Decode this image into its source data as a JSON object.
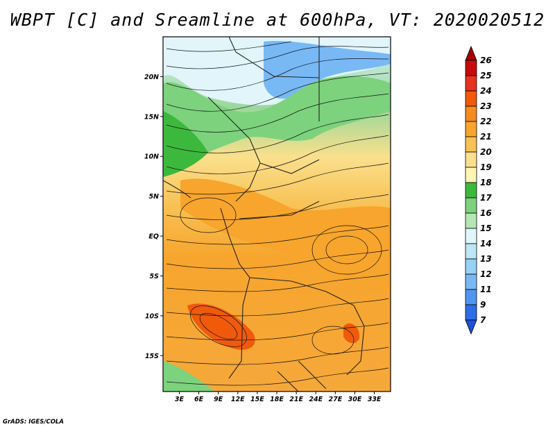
{
  "title": "WBPT [C] and Sreamline at 600hPa, VT: 2020020512",
  "credit": "GrADS: IGES/COLA",
  "map": {
    "lat_labels": [
      "20N",
      "15N",
      "10N",
      "5N",
      "EQ",
      "5S",
      "10S",
      "15S"
    ],
    "lat_values": [
      20,
      15,
      10,
      5,
      0,
      -5,
      -10,
      -15
    ],
    "lon_labels": [
      "3E",
      "6E",
      "9E",
      "12E",
      "15E",
      "18E",
      "21E",
      "24E",
      "27E",
      "30E",
      "33E"
    ],
    "lon_values": [
      3,
      6,
      9,
      12,
      15,
      18,
      21,
      24,
      27,
      30,
      33
    ],
    "lon_range": [
      0.5,
      35.5
    ],
    "lat_range": [
      -19.5,
      25
    ]
  },
  "colorbar": {
    "labels": [
      "26",
      "25",
      "24",
      "23",
      "22",
      "21",
      "20",
      "19",
      "18",
      "17",
      "16",
      "15",
      "14",
      "13",
      "12",
      "11",
      "9",
      "7"
    ],
    "colors": [
      "#a50000",
      "#c80a0a",
      "#e6321e",
      "#f05a0a",
      "#f58c1e",
      "#f7a52d",
      "#f8c154",
      "#fae08c",
      "#fff5b4",
      "#3cb93c",
      "#7dd27d",
      "#b4e6b4",
      "#e1f5fa",
      "#bee6f5",
      "#96d2f5",
      "#78b9f5",
      "#5096f0",
      "#2d6ee6",
      "#1e50dc"
    ]
  }
}
